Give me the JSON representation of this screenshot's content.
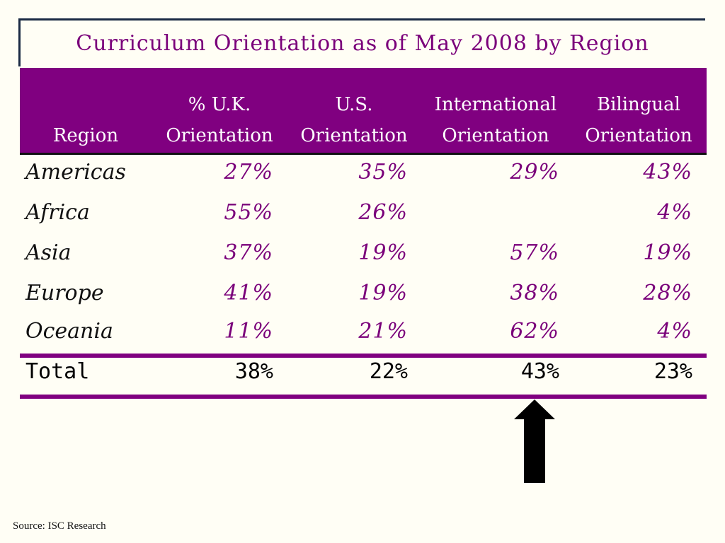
{
  "title": "Curriculum  Orientation as of May 2008 by Region",
  "headers": {
    "region": "Region",
    "uk": [
      "%   U.K.",
      "Orientation"
    ],
    "us": [
      "U.S.",
      "Orientation"
    ],
    "intl": [
      "International",
      "Orientation"
    ],
    "bil": [
      "Bilingual",
      "Orientation"
    ]
  },
  "rows": [
    {
      "region": "Americas",
      "uk": "27%",
      "us": "35%",
      "intl": "29%",
      "bil": "43%"
    },
    {
      "region": "Africa",
      "uk": "55%",
      "us": "26%",
      "intl": "",
      "bil": "4%"
    },
    {
      "region": "Asia",
      "uk": "37%",
      "us": "19%",
      "intl": "57%",
      "bil": "19%"
    },
    {
      "region": "Europe",
      "uk": "41%",
      "us": "19%",
      "intl": "38%",
      "bil": "28%"
    },
    {
      "region": "Oceania",
      "uk": "11%",
      "us": "21%",
      "intl": "62%",
      "bil": "4%"
    }
  ],
  "total": {
    "label": "Total",
    "uk": "38%",
    "us": "22%",
    "intl": "43%",
    "bil": "23%"
  },
  "arrow_icon": "up-arrow-icon",
  "source": "Source: ISC Research",
  "colors": {
    "accent": "#800080",
    "background": "#fffef5"
  }
}
